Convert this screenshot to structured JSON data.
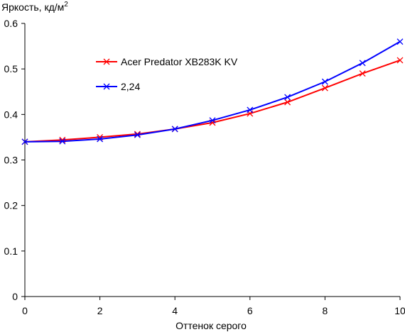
{
  "chart_data": {
    "type": "line",
    "title": "",
    "ylabel": "Яркость, кд/м",
    "ylabel_sup": "2",
    "xlabel": "Оттенок серого",
    "xlim": [
      0,
      10
    ],
    "ylim": [
      0,
      0.6
    ],
    "xticks": [
      0,
      2,
      4,
      6,
      8,
      10
    ],
    "yticks": [
      0,
      0.1,
      0.2,
      0.3,
      0.4,
      0.5,
      0.6
    ],
    "x": [
      0,
      1,
      2,
      3,
      4,
      5,
      6,
      7,
      8,
      9,
      10
    ],
    "grid": false,
    "legend_position": "upper-left",
    "series": [
      {
        "name": "Acer Predator XB283K KV",
        "color": "#ff0000",
        "marker": "x",
        "values": [
          0.34,
          0.344,
          0.35,
          0.357,
          0.368,
          0.382,
          0.402,
          0.427,
          0.458,
          0.49,
          0.519
        ]
      },
      {
        "name": "2,24",
        "color": "#0000ff",
        "marker": "x",
        "values": [
          0.34,
          0.341,
          0.346,
          0.355,
          0.368,
          0.387,
          0.41,
          0.438,
          0.472,
          0.513,
          0.56
        ]
      }
    ]
  }
}
